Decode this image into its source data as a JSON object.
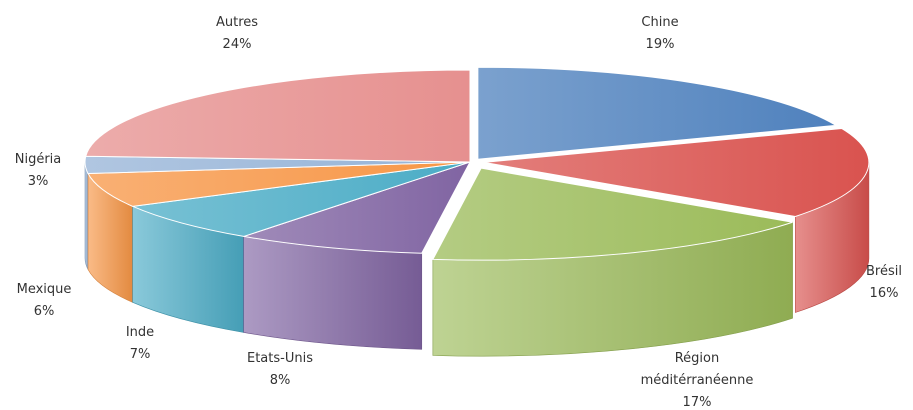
{
  "chart_data": {
    "type": "pie",
    "style": "3d-exploded",
    "legend": "none",
    "slices": [
      {
        "label": "Chine",
        "value": 19,
        "pct_label": "19%",
        "color": "#4f81bd"
      },
      {
        "label": "Brésil",
        "value": 16,
        "pct_label": "16%",
        "color": "#d9534f"
      },
      {
        "label": "Région méditérranéenne",
        "label_lines": [
          "Région",
          "méditérranéenne"
        ],
        "value": 17,
        "pct_label": "17%",
        "color": "#9bbb59"
      },
      {
        "label": "Etats-Unis",
        "value": 8,
        "pct_label": "8%",
        "color": "#8064a2"
      },
      {
        "label": "Inde",
        "value": 7,
        "pct_label": "7%",
        "color": "#4bacc6"
      },
      {
        "label": "Mexique",
        "value": 6,
        "pct_label": "6%",
        "color": "#f79646"
      },
      {
        "label": "Nigéria",
        "value": 3,
        "pct_label": "3%",
        "color": "#95b3d7"
      },
      {
        "label": "Autres",
        "value": 24,
        "pct_label": "24%",
        "color": "#e6908f"
      }
    ]
  }
}
